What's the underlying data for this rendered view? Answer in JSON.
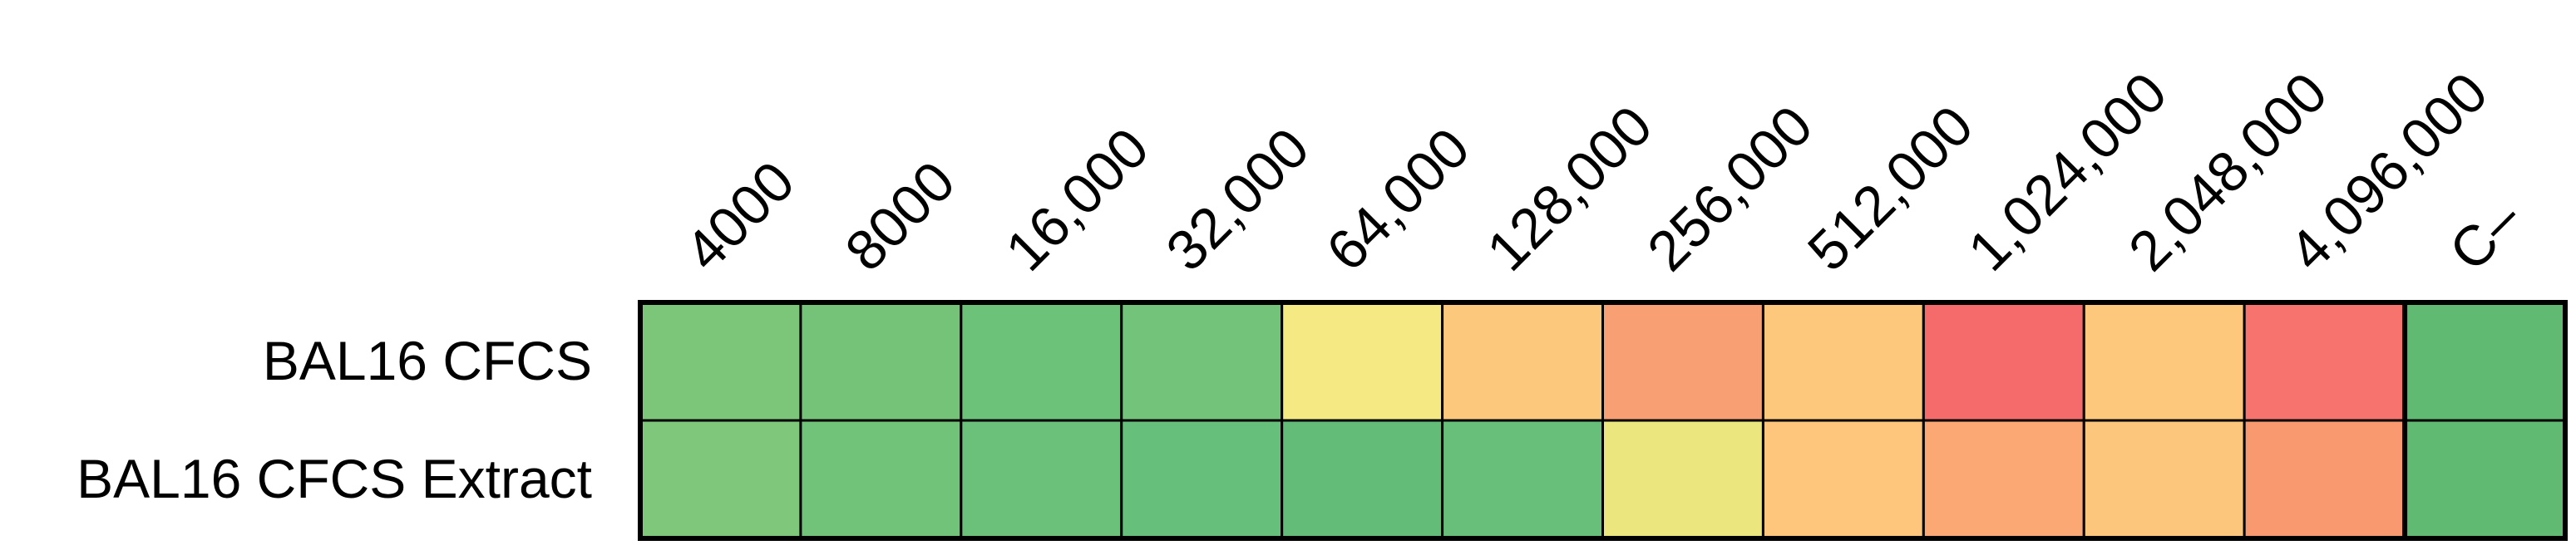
{
  "chart_data": {
    "type": "heatmap",
    "columns": [
      "4000",
      "8000",
      "16,000",
      "32,000",
      "64,000",
      "128,000",
      "256,000",
      "512,000",
      "1,024,000",
      "2,048,000",
      "4,096,000",
      "C–"
    ],
    "rows": [
      "BAL16 CFCS",
      "BAL16 CFCS Extract"
    ],
    "cell_colors": [
      [
        "#7cc67a",
        "#74c379",
        "#6dc27a",
        "#73c37a",
        "#f5e984",
        "#fcc97c",
        "#f8a073",
        "#fec87c",
        "#f56b6c",
        "#fec87c",
        "#f6736e",
        "#61ba71"
      ],
      [
        "#7fc77b",
        "#72c37a",
        "#6bc17a",
        "#66bf7a",
        "#63bd79",
        "#68bf79",
        "#ece67e",
        "#fec67c",
        "#fba874",
        "#fcc67c",
        "#f9996f",
        "#61ba71"
      ]
    ]
  }
}
